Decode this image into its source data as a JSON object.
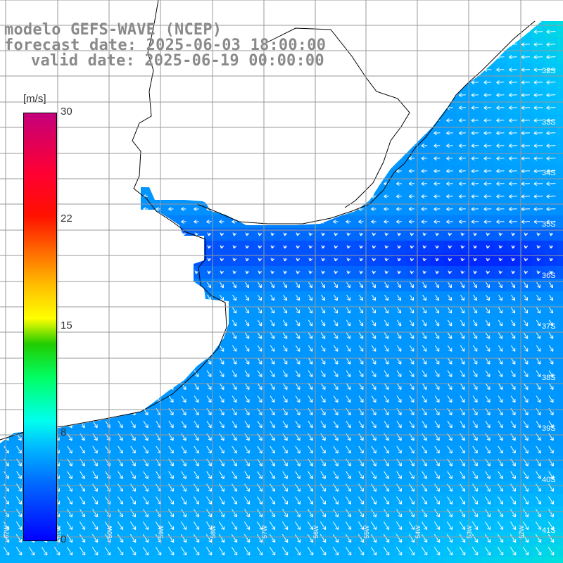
{
  "title": {
    "line1": "modelo GEFS-WAVE (NCEP)",
    "line2": "forecast date: 2025-06-03 18:00:00",
    "line3": "valid date: 2025-06-19 00:00:00"
  },
  "colorbar": {
    "unit": "[m/s]",
    "ticks": [
      "30",
      "22",
      "15",
      "8",
      "0"
    ],
    "tick_values": [
      30,
      22,
      15,
      8,
      0
    ],
    "colors": {
      "low": "#0000ff",
      "mid": "#00ffee",
      "green": "#22cc00",
      "yellow": "#ffff00",
      "red": "#ff1100",
      "high": "#c4007a"
    }
  },
  "map": {
    "land_color": "#ffffff",
    "grid_color": "#9a9a9a",
    "lat_labels": [
      "32S",
      "33S",
      "34S",
      "35S",
      "36S",
      "37S",
      "38S",
      "39S",
      "40S",
      "41S"
    ],
    "lon_labels": [
      "62W",
      "61W",
      "60W",
      "59W",
      "58W",
      "57W",
      "56W",
      "55W",
      "54W",
      "53W",
      "52W"
    ]
  }
}
